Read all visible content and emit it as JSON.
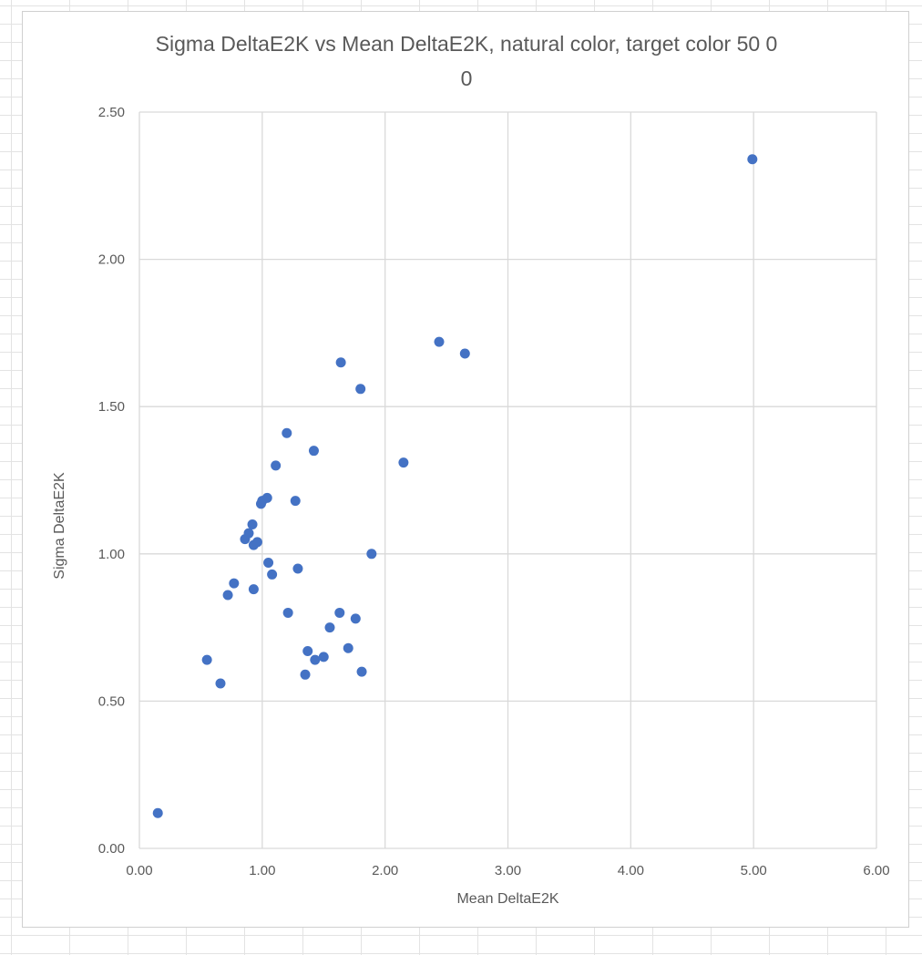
{
  "chart_data": {
    "type": "scatter",
    "title_lines": [
      "Sigma DeltaE2K vs Mean DeltaE2K, natural color, target color 50 0",
      "0"
    ],
    "xlabel": "Mean DeltaE2K",
    "ylabel": "Sigma DeltaE2K",
    "xlim": [
      0,
      6
    ],
    "ylim": [
      0,
      2.5
    ],
    "x_ticks": [
      "0.00",
      "1.00",
      "2.00",
      "3.00",
      "4.00",
      "5.00",
      "6.00"
    ],
    "y_ticks": [
      "0.00",
      "0.50",
      "1.00",
      "1.50",
      "2.00",
      "2.50"
    ],
    "grid": true,
    "legend": "none",
    "marker_color": "#4472c4",
    "gridline_color": "#d9d9d9",
    "points": [
      {
        "x": 0.15,
        "y": 0.12
      },
      {
        "x": 0.55,
        "y": 0.64
      },
      {
        "x": 0.66,
        "y": 0.56
      },
      {
        "x": 0.72,
        "y": 0.86
      },
      {
        "x": 0.77,
        "y": 0.9
      },
      {
        "x": 0.86,
        "y": 1.05
      },
      {
        "x": 0.89,
        "y": 1.07
      },
      {
        "x": 0.92,
        "y": 1.1
      },
      {
        "x": 0.93,
        "y": 1.03
      },
      {
        "x": 0.96,
        "y": 1.04
      },
      {
        "x": 0.93,
        "y": 0.88
      },
      {
        "x": 0.99,
        "y": 1.17
      },
      {
        "x": 1.0,
        "y": 1.18
      },
      {
        "x": 1.04,
        "y": 1.19
      },
      {
        "x": 1.05,
        "y": 0.97
      },
      {
        "x": 1.08,
        "y": 0.93
      },
      {
        "x": 1.11,
        "y": 1.3
      },
      {
        "x": 1.2,
        "y": 1.41
      },
      {
        "x": 1.21,
        "y": 0.8
      },
      {
        "x": 1.27,
        "y": 1.18
      },
      {
        "x": 1.29,
        "y": 0.95
      },
      {
        "x": 1.35,
        "y": 0.59
      },
      {
        "x": 1.37,
        "y": 0.67
      },
      {
        "x": 1.42,
        "y": 1.35
      },
      {
        "x": 1.43,
        "y": 0.64
      },
      {
        "x": 1.5,
        "y": 0.65
      },
      {
        "x": 1.55,
        "y": 0.75
      },
      {
        "x": 1.63,
        "y": 0.8
      },
      {
        "x": 1.64,
        "y": 1.65
      },
      {
        "x": 1.7,
        "y": 0.68
      },
      {
        "x": 1.76,
        "y": 0.78
      },
      {
        "x": 1.8,
        "y": 1.56
      },
      {
        "x": 1.81,
        "y": 0.6
      },
      {
        "x": 1.89,
        "y": 1.0
      },
      {
        "x": 2.15,
        "y": 1.31
      },
      {
        "x": 2.44,
        "y": 1.72
      },
      {
        "x": 2.65,
        "y": 1.68
      },
      {
        "x": 4.99,
        "y": 2.34
      }
    ]
  }
}
